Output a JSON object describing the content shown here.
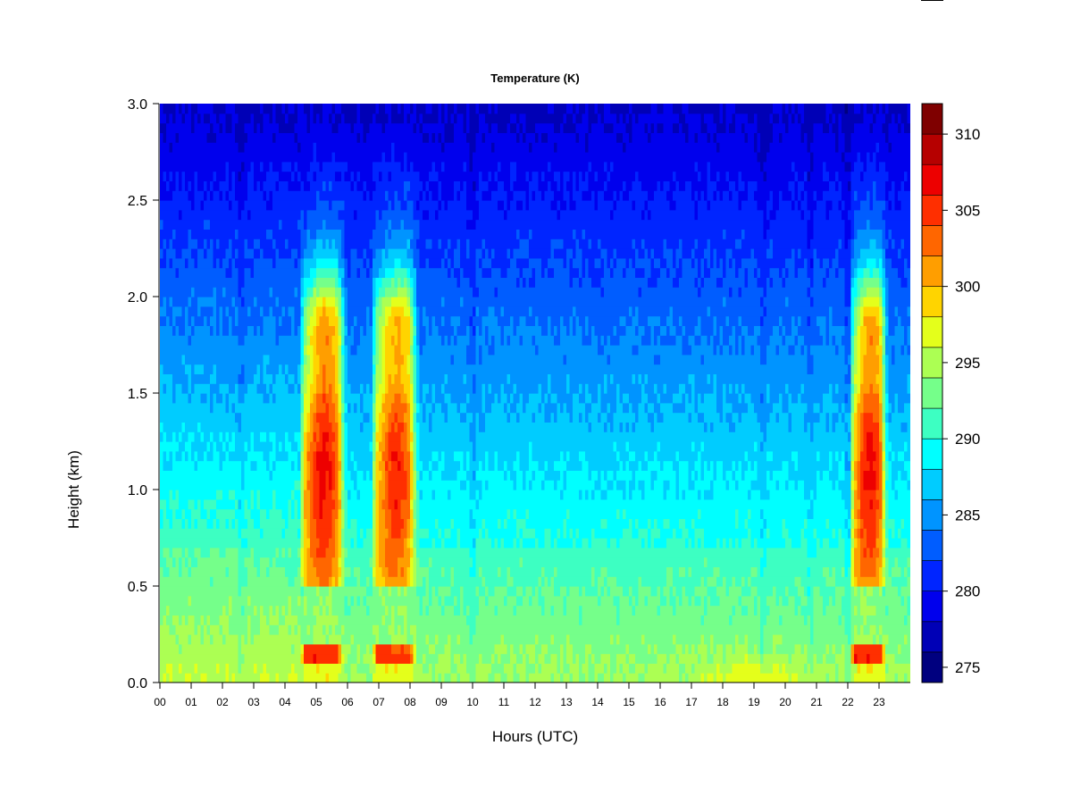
{
  "chart_data": {
    "type": "heatmap",
    "title": "Temperature (K)",
    "xlabel": "Hours (UTC)",
    "ylabel": "Height (km)",
    "xlim": [
      0,
      24
    ],
    "ylim": [
      0.0,
      3.0
    ],
    "x_ticks": [
      "00",
      "01",
      "02",
      "03",
      "04",
      "05",
      "06",
      "07",
      "08",
      "09",
      "10",
      "11",
      "12",
      "13",
      "14",
      "15",
      "16",
      "17",
      "18",
      "19",
      "20",
      "21",
      "22",
      "23"
    ],
    "y_ticks": [
      "0.0",
      "0.5",
      "1.0",
      "1.5",
      "2.0",
      "2.5",
      "3.0"
    ],
    "colorbar": {
      "levels": [
        274,
        276,
        278,
        280,
        282,
        284,
        286,
        288,
        290,
        292,
        294,
        296,
        298,
        300,
        302,
        304,
        306,
        308,
        310,
        312
      ],
      "tick_values": [
        275,
        280,
        285,
        290,
        295,
        300,
        305,
        310
      ],
      "tick_labels": [
        "275",
        "280",
        "285",
        "290",
        "295",
        "300",
        "305",
        "310"
      ],
      "colors": [
        "#00007f",
        "#0000b6",
        "#0000ed",
        "#0025ff",
        "#005dff",
        "#0094ff",
        "#00ccff",
        "#00ffff",
        "#3dffc2",
        "#75ff8a",
        "#acff53",
        "#e4ff1b",
        "#ffd400",
        "#ff9e00",
        "#ff6600",
        "#ff2f00",
        "#ed0000",
        "#b60000",
        "#7f0000"
      ]
    },
    "data_description_levels": {
      "background": {
        "surface_K": 294,
        "top_K": 277
      },
      "warm_plumes": [
        {
          "x_start_hour": 4.5,
          "x_end_hour": 6.0,
          "peak_K": 307
        },
        {
          "x_start_hour": 6.8,
          "x_end_hour": 8.3,
          "peak_K": 306
        },
        {
          "x_start_hour": 22.1,
          "x_end_hour": 23.3,
          "peak_K": 307
        }
      ]
    }
  }
}
